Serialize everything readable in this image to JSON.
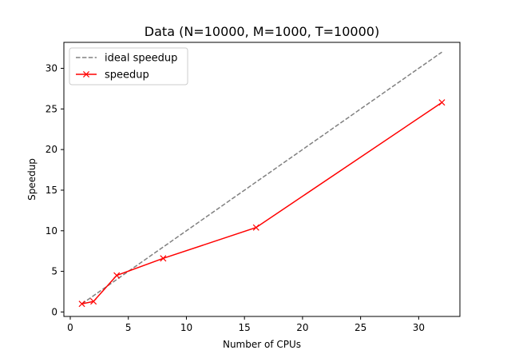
{
  "chart_data": {
    "type": "line",
    "title": "Data (N=10000, M=1000, T=10000)",
    "xlabel": "Number of CPUs",
    "ylabel": "Speedup",
    "xlim": [
      -0.55,
      33.55
    ],
    "ylim": [
      -0.55,
      33.2
    ],
    "xticks": [
      0,
      5,
      10,
      15,
      20,
      25,
      30
    ],
    "yticks": [
      0,
      5,
      10,
      15,
      20,
      25,
      30
    ],
    "grid": false,
    "legend_position": "top-left",
    "series": [
      {
        "name": "ideal speedup",
        "style": "dashed",
        "color": "#808080",
        "marker": "none",
        "x": [
          1,
          32
        ],
        "y": [
          1,
          32
        ]
      },
      {
        "name": "speedup",
        "style": "solid",
        "color": "#ff0000",
        "marker": "x",
        "x": [
          1,
          2,
          4,
          8,
          16,
          32
        ],
        "y": [
          1.0,
          1.3,
          4.5,
          6.6,
          10.4,
          25.8
        ]
      }
    ]
  }
}
